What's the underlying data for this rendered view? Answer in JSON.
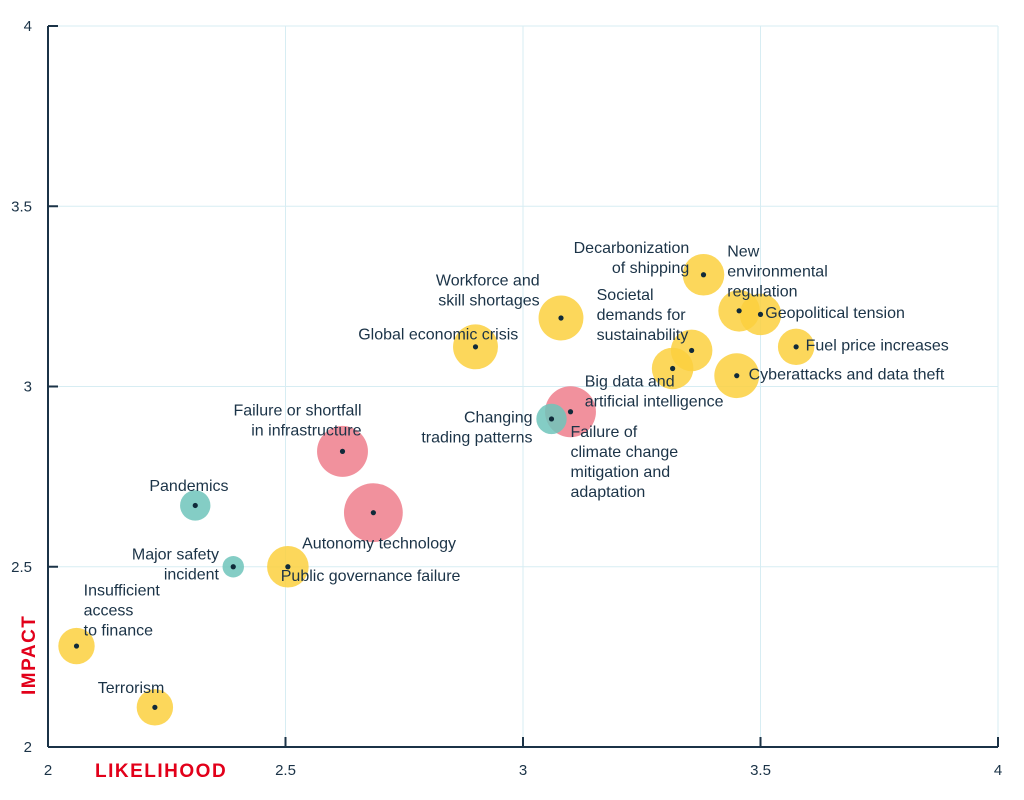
{
  "chart_data": {
    "type": "scatter",
    "variant": "bubble",
    "xlabel": "LIKELIHOOD",
    "ylabel": "IMPACT",
    "xlim": [
      2,
      4
    ],
    "ylim": [
      2,
      4
    ],
    "x_ticks": [
      "2",
      "2.5",
      "3",
      "3.5",
      "4"
    ],
    "y_ticks": [
      "2",
      "2.5",
      "3",
      "3.5",
      "4"
    ],
    "grid": true,
    "colors": {
      "yellow": "#fcd03e",
      "red": "#ef7e8c",
      "teal": "#6ec4bb",
      "dot": "#102a3a",
      "grid": "#d7edf3",
      "axis": "#1b3347",
      "axis_title": "#e2001a"
    },
    "points": [
      {
        "label": "Decarbonization\nof shipping",
        "x": 3.38,
        "y": 3.31,
        "size": 3,
        "color": "yellow",
        "anchor": "end",
        "lx": 3.35,
        "ly": 3.37
      },
      {
        "label": "New\nenvironmental\nregulation",
        "x": 3.455,
        "y": 3.21,
        "size": 3,
        "color": "yellow",
        "anchor": "start",
        "lx": 3.43,
        "ly": 3.36
      },
      {
        "label": "Geopolitical tension",
        "x": 3.5,
        "y": 3.2,
        "size": 3,
        "color": "yellow",
        "anchor": "start",
        "lx": 3.51,
        "ly": 3.19
      },
      {
        "label": "Fuel price increases",
        "x": 3.575,
        "y": 3.11,
        "size": 2.3,
        "color": "yellow",
        "anchor": "start",
        "lx": 3.595,
        "ly": 3.1
      },
      {
        "label": "Cyberattacks and data theft",
        "x": 3.45,
        "y": 3.03,
        "size": 3.5,
        "color": "yellow",
        "anchor": "start",
        "lx": 3.475,
        "ly": 3.02
      },
      {
        "label": "Societal\ndemands for\nsustainability",
        "x": 3.355,
        "y": 3.1,
        "size": 3,
        "color": "yellow",
        "anchor": "start",
        "lx": 3.155,
        "ly": 3.24
      },
      {
        "label": "",
        "x": 3.315,
        "y": 3.05,
        "size": 3,
        "color": "yellow",
        "anchor": "start",
        "lx": 3.315,
        "ly": 3.05
      },
      {
        "label": "Workforce and\nskill shortages",
        "x": 3.08,
        "y": 3.19,
        "size": 3.5,
        "color": "yellow",
        "anchor": "end",
        "lx": 3.035,
        "ly": 3.28
      },
      {
        "label": "Global economic crisis",
        "x": 2.9,
        "y": 3.11,
        "size": 3.5,
        "color": "yellow",
        "anchor": "end",
        "lx": 2.99,
        "ly": 3.13
      },
      {
        "label": "Big data and\nartificial intelligence",
        "x": 3.1,
        "y": 2.93,
        "size": 4.5,
        "color": "red",
        "anchor": "start",
        "lx": 3.13,
        "ly": 3
      },
      {
        "label": "Failure of\nclimate change\nmitigation and\nadaptation",
        "x": 3.1,
        "y": 2.93,
        "size": 0,
        "color": "red",
        "anchor": "start",
        "lx": 3.1,
        "ly": 2.86
      },
      {
        "label": "Changing\ntrading patterns",
        "x": 3.06,
        "y": 2.91,
        "size": 1.6,
        "color": "teal",
        "anchor": "end",
        "lx": 3.02,
        "ly": 2.9
      },
      {
        "label": "Failure or shortfall\nin infrastructure",
        "x": 2.62,
        "y": 2.82,
        "size": 4.5,
        "color": "red",
        "anchor": "end",
        "lx": 2.66,
        "ly": 2.92
      },
      {
        "label": "Autonomy technology",
        "x": 2.685,
        "y": 2.65,
        "size": 6,
        "color": "red",
        "anchor": "start",
        "lx": 2.535,
        "ly": 2.55
      },
      {
        "label": "Pandemics",
        "x": 2.31,
        "y": 2.67,
        "size": 1.6,
        "color": "teal",
        "anchor": "end",
        "lx": 2.38,
        "ly": 2.71
      },
      {
        "label": "Major safety\nincident",
        "x": 2.39,
        "y": 2.5,
        "size": 0.8,
        "color": "teal",
        "anchor": "end",
        "lx": 2.36,
        "ly": 2.52
      },
      {
        "label": "Public governance failure",
        "x": 2.505,
        "y": 2.5,
        "size": 3,
        "color": "yellow",
        "anchor": "start",
        "lx": 2.49,
        "ly": 2.46
      },
      {
        "label": "Insufficient\naccess\nto finance",
        "x": 2.06,
        "y": 2.28,
        "size": 2.3,
        "color": "yellow",
        "anchor": "start",
        "lx": 2.075,
        "ly": 2.42
      },
      {
        "label": "Terrorism",
        "x": 2.225,
        "y": 2.11,
        "size": 2.3,
        "color": "yellow",
        "anchor": "end",
        "lx": 2.245,
        "ly": 2.15
      }
    ]
  }
}
